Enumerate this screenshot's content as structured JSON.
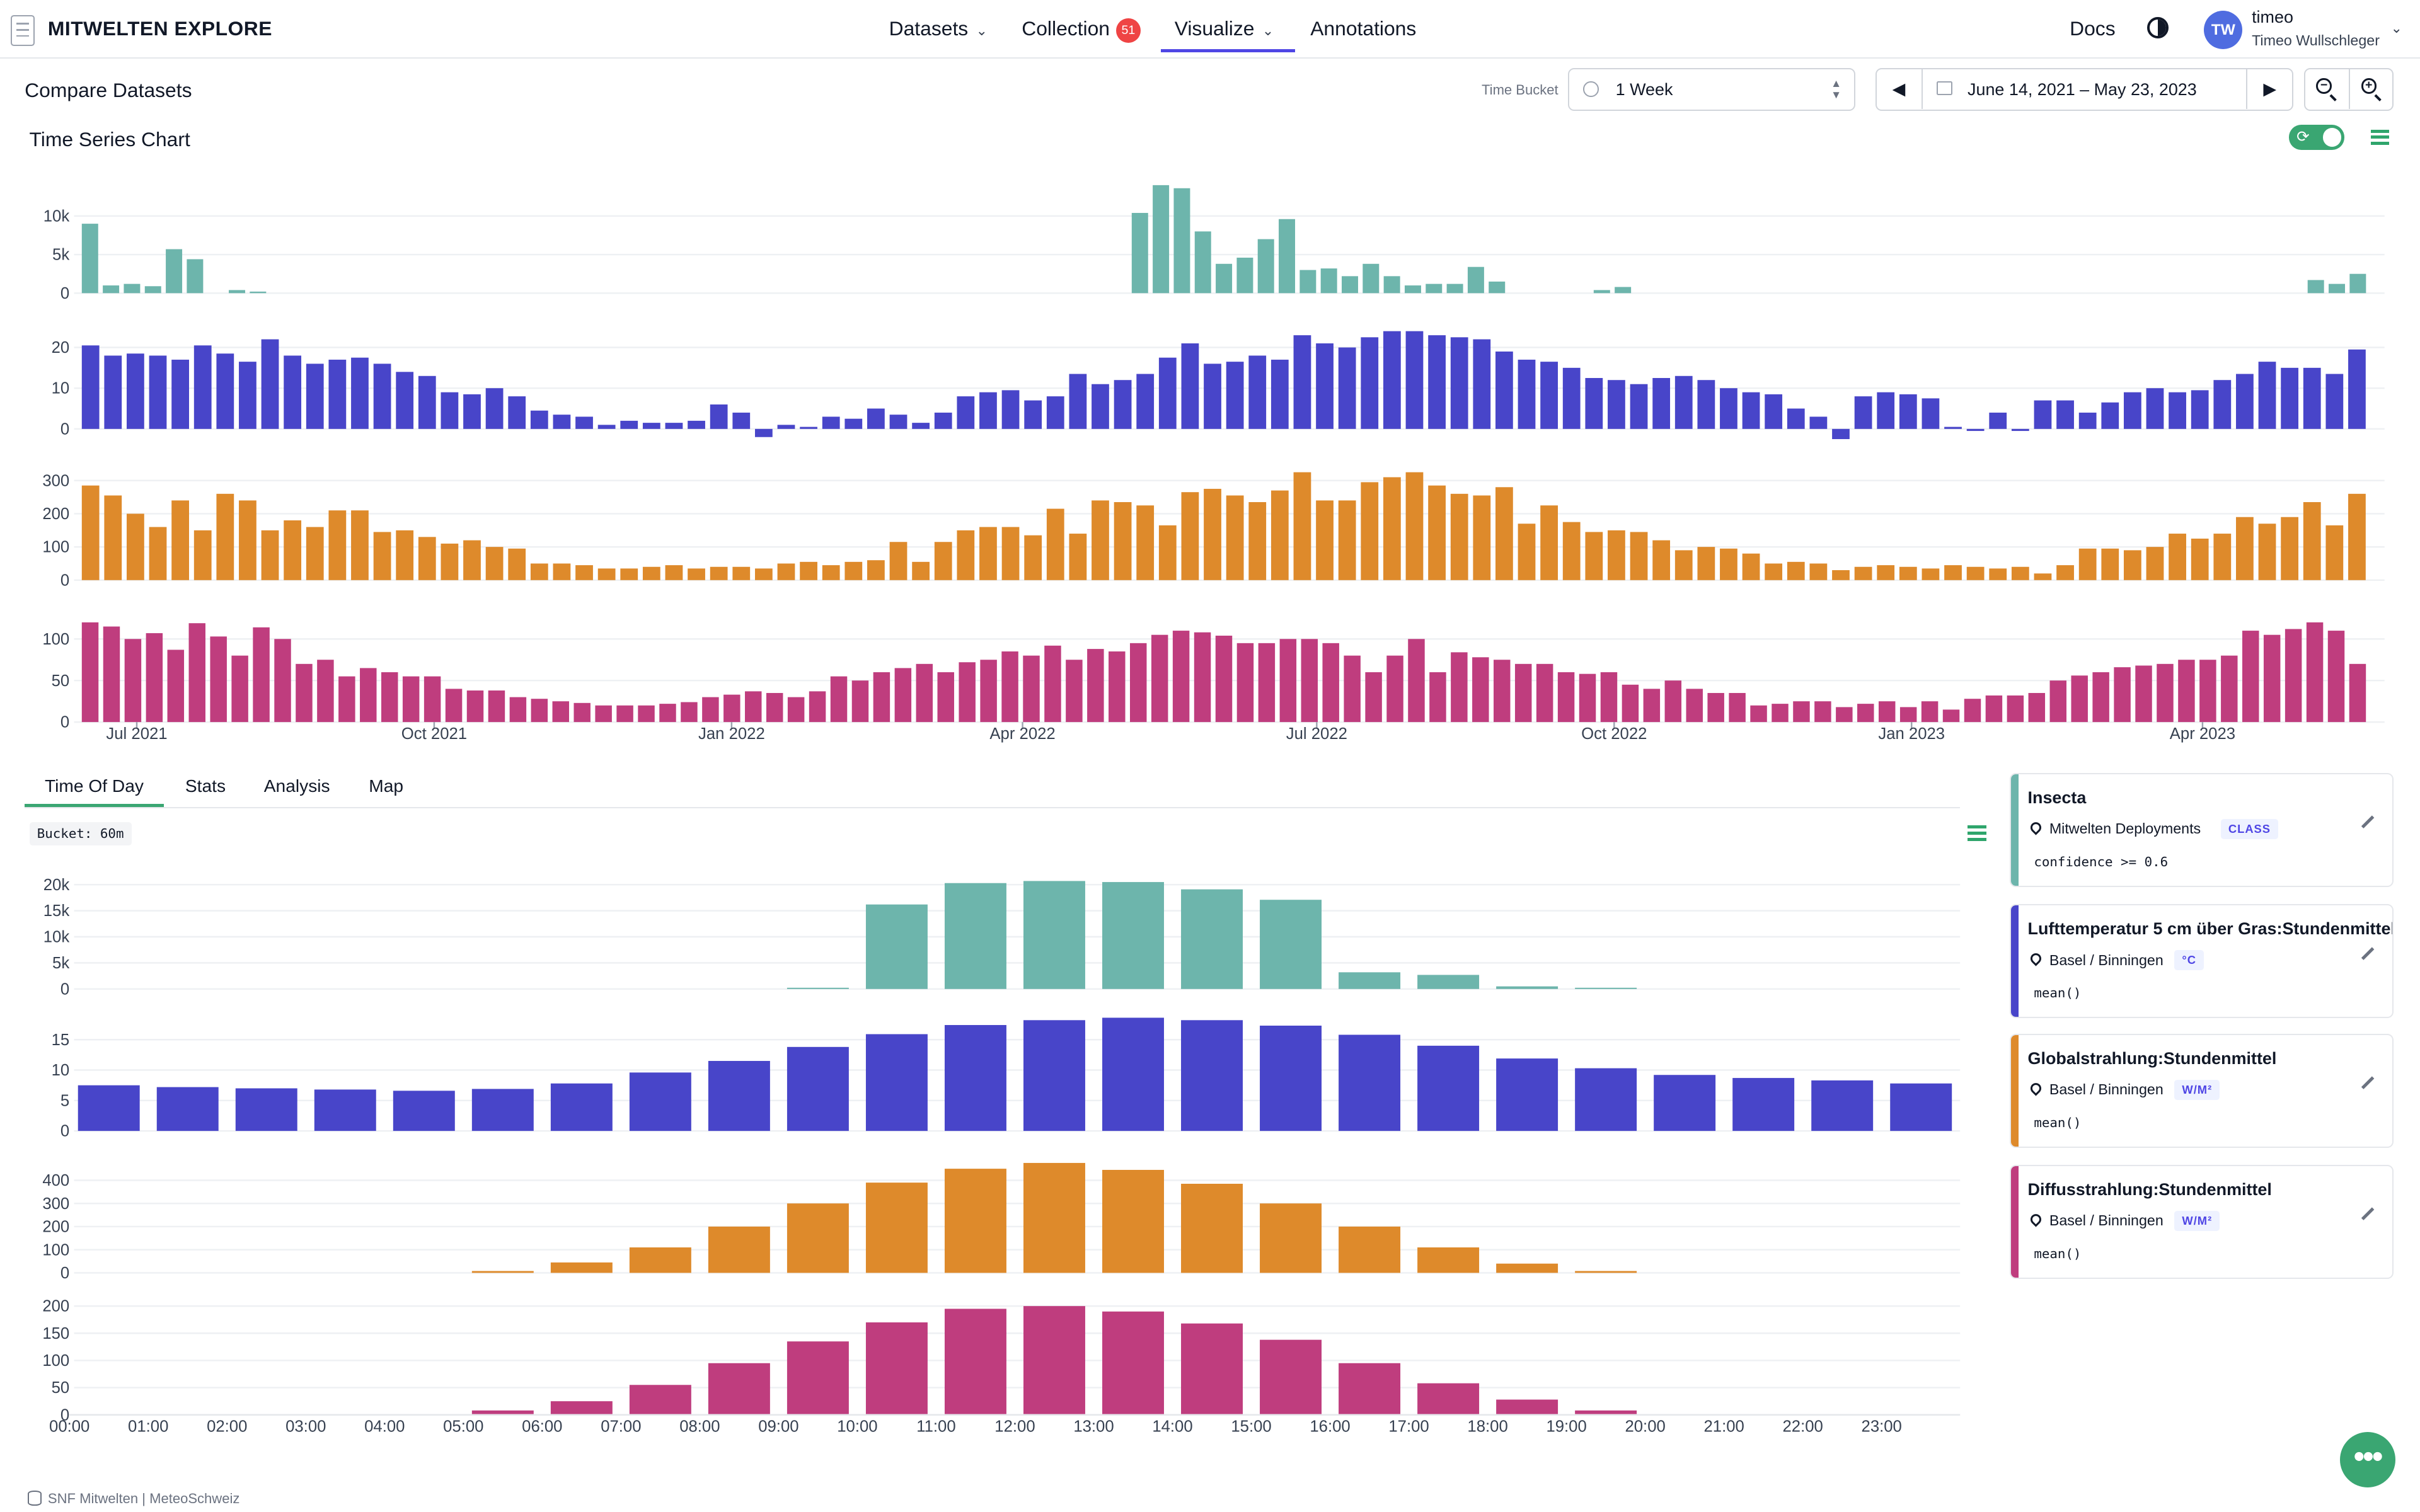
{
  "app": {
    "title": "MITWELTEN EXPLORE"
  },
  "nav": {
    "datasets": "Datasets",
    "collection": "Collection",
    "collection_count": "51",
    "visualize": "Visualize",
    "annotations": "Annotations",
    "docs": "Docs"
  },
  "user": {
    "initials": "TW",
    "handle": "timeo",
    "name": "Timeo Wullschleger"
  },
  "toolbar": {
    "page_title": "Compare Datasets",
    "time_bucket_label": "Time Bucket",
    "time_bucket_value": "1 Week",
    "date_range": "June 14, 2021 – May 23, 2023"
  },
  "timeseries": {
    "title": "Time Series Chart",
    "x_ticks": [
      "Jul 2021",
      "Oct 2021",
      "Jan 2022",
      "Apr 2022",
      "Jul 2022",
      "Oct 2022",
      "Jan 2023",
      "Apr 2023"
    ]
  },
  "tabs": [
    "Time Of Day",
    "Stats",
    "Analysis",
    "Map"
  ],
  "tod": {
    "bucket": "Bucket: 60m",
    "hours": [
      "00:00",
      "01:00",
      "02:00",
      "03:00",
      "04:00",
      "05:00",
      "06:00",
      "07:00",
      "08:00",
      "09:00",
      "10:00",
      "11:00",
      "12:00",
      "13:00",
      "14:00",
      "15:00",
      "16:00",
      "17:00",
      "18:00",
      "19:00",
      "20:00",
      "21:00",
      "22:00",
      "23:00"
    ]
  },
  "legend": [
    {
      "title": "Insecta",
      "source": "Mitwelten Deployments",
      "unit": "CLASS",
      "filter": "confidence >= 0.6",
      "color": "#6db5ac"
    },
    {
      "title": "Lufttemperatur 5 cm über Gras:Stundenmittel",
      "source": "Basel / Binningen",
      "unit": "°C",
      "filter": "mean()",
      "color": "#4845c9"
    },
    {
      "title": "Globalstrahlung:Stundenmittel",
      "source": "Basel / Binningen",
      "unit": "W/M²",
      "filter": "mean()",
      "color": "#de8a2b"
    },
    {
      "title": "Diffusstrahlung:Stundenmittel",
      "source": "Basel / Binningen",
      "unit": "W/M²",
      "filter": "mean()",
      "color": "#bf3d7e"
    }
  ],
  "footer": {
    "text": "SNF Mitwelten | MeteoSchweiz"
  },
  "chart_data": [
    {
      "type": "bar",
      "title": "Time Series Chart",
      "xlabel": "",
      "ylabel": "",
      "x_start": "2021-06-14",
      "x_end": "2023-05-23",
      "bucket": "1 Week",
      "series": [
        {
          "name": "Insecta",
          "color": "#6db5ac",
          "ylim": [
            0,
            14000
          ],
          "y_ticks": [
            0,
            5000,
            10000
          ],
          "y_tick_labels": [
            "0",
            "5k",
            "10k"
          ],
          "values": [
            9000,
            1000,
            1200,
            900,
            5700,
            4400,
            0,
            400,
            200,
            0,
            0,
            0,
            0,
            0,
            0,
            0,
            0,
            0,
            0,
            0,
            0,
            0,
            0,
            0,
            0,
            0,
            0,
            0,
            0,
            0,
            0,
            0,
            0,
            0,
            0,
            0,
            0,
            0,
            0,
            0,
            0,
            0,
            0,
            0,
            0,
            0,
            0,
            0,
            0,
            0,
            10400,
            14000,
            13600,
            8000,
            3800,
            4600,
            7000,
            9600,
            3000,
            3200,
            2200,
            3800,
            2200,
            1000,
            1200,
            1200,
            3400,
            1500,
            0,
            0,
            0,
            0,
            400,
            800,
            0,
            0,
            0,
            0,
            0,
            0,
            0,
            0,
            0,
            0,
            0,
            0,
            0,
            0,
            0,
            0,
            0,
            0,
            0,
            0,
            0,
            0,
            0,
            0,
            0,
            0,
            0,
            0,
            0,
            0,
            0,
            0,
            1700,
            1200,
            2500
          ]
        },
        {
          "name": "Lufttemperatur 5 cm über Gras:Stundenmittel",
          "color": "#4845c9",
          "ylim": [
            -3,
            25
          ],
          "y_ticks": [
            0,
            10,
            20
          ],
          "y_tick_labels": [
            "0",
            "10",
            "20"
          ],
          "values": [
            20.5,
            18,
            18.5,
            18,
            17,
            20.5,
            18.5,
            16.5,
            22,
            18,
            16,
            17,
            17.5,
            16,
            14,
            13,
            9,
            8.5,
            10,
            8,
            4.5,
            3.5,
            3,
            1,
            2,
            1.5,
            1.5,
            2,
            6,
            4,
            -2,
            1,
            0.5,
            3,
            2.5,
            5,
            3.5,
            1.5,
            4,
            8,
            9,
            9.5,
            7,
            8,
            13.5,
            11,
            12,
            13.5,
            17.5,
            21,
            16,
            16.5,
            18,
            17,
            23,
            21,
            20,
            22.5,
            24,
            24,
            23,
            22.5,
            22,
            19,
            17,
            16.5,
            15,
            12.5,
            12,
            11,
            12.5,
            13,
            12,
            10,
            9,
            8.5,
            5,
            3,
            -2.5,
            8,
            9,
            8.5,
            7.5,
            0.5,
            -0.5,
            4,
            -0.5,
            7,
            7,
            4,
            6.5,
            9,
            10,
            9,
            9.5,
            12,
            13.5,
            16.5,
            15,
            15,
            13.5,
            19.5
          ]
        },
        {
          "name": "Globalstrahlung:Stundenmittel",
          "color": "#de8a2b",
          "ylim": [
            0,
            330
          ],
          "y_ticks": [
            0,
            100,
            200,
            300
          ],
          "y_tick_labels": [
            "0",
            "100",
            "200",
            "300"
          ],
          "values": [
            285,
            255,
            200,
            160,
            240,
            150,
            260,
            240,
            150,
            180,
            160,
            210,
            210,
            145,
            150,
            130,
            110,
            120,
            100,
            95,
            50,
            50,
            45,
            35,
            35,
            40,
            45,
            35,
            40,
            40,
            35,
            50,
            55,
            45,
            55,
            60,
            115,
            55,
            115,
            150,
            160,
            160,
            135,
            215,
            140,
            240,
            235,
            225,
            165,
            265,
            275,
            255,
            235,
            270,
            325,
            240,
            240,
            295,
            310,
            325,
            285,
            260,
            255,
            280,
            170,
            225,
            175,
            145,
            150,
            145,
            120,
            90,
            100,
            95,
            80,
            50,
            55,
            50,
            30,
            40,
            45,
            40,
            35,
            45,
            40,
            35,
            40,
            20,
            45,
            95,
            95,
            90,
            100,
            140,
            125,
            140,
            190,
            170,
            190,
            235,
            165,
            260
          ]
        },
        {
          "name": "Diffusstrahlung:Stundenmittel",
          "color": "#bf3d7e",
          "ylim": [
            0,
            130
          ],
          "y_ticks": [
            0,
            50,
            100
          ],
          "y_tick_labels": [
            "0",
            "50",
            "100"
          ],
          "values": [
            120,
            115,
            100,
            107,
            87,
            119,
            103,
            80,
            114,
            100,
            70,
            75,
            55,
            65,
            60,
            55,
            55,
            40,
            38,
            38,
            30,
            28,
            25,
            23,
            20,
            20,
            20,
            22,
            24,
            30,
            33,
            37,
            35,
            30,
            37,
            55,
            50,
            60,
            65,
            70,
            60,
            72,
            75,
            85,
            80,
            92,
            75,
            88,
            85,
            95,
            105,
            110,
            108,
            104,
            95,
            95,
            100,
            100,
            95,
            80,
            60,
            80,
            100,
            60,
            84,
            78,
            75,
            70,
            70,
            60,
            58,
            60,
            45,
            40,
            50,
            40,
            35,
            35,
            20,
            22,
            25,
            25,
            18,
            22,
            25,
            18,
            25,
            15,
            28,
            32,
            32,
            35,
            50,
            56,
            60,
            66,
            68,
            70,
            75,
            75,
            80,
            110,
            105,
            112,
            120,
            110,
            70
          ]
        }
      ]
    },
    {
      "type": "bar",
      "title": "Time Of Day",
      "xlabel": "",
      "ylabel": "",
      "categories": [
        "00:00",
        "01:00",
        "02:00",
        "03:00",
        "04:00",
        "05:00",
        "06:00",
        "07:00",
        "08:00",
        "09:00",
        "10:00",
        "11:00",
        "12:00",
        "13:00",
        "14:00",
        "15:00",
        "16:00",
        "17:00",
        "18:00",
        "19:00",
        "20:00",
        "21:00",
        "22:00",
        "23:00"
      ],
      "series": [
        {
          "name": "Insecta",
          "color": "#6db5ac",
          "ylim": [
            0,
            21000
          ],
          "y_ticks": [
            0,
            5000,
            10000,
            15000,
            20000
          ],
          "y_tick_labels": [
            "0",
            "5k",
            "10k",
            "15k",
            "20k"
          ],
          "values": [
            0,
            0,
            0,
            0,
            0,
            0,
            0,
            0,
            0,
            200,
            16200,
            20300,
            20700,
            20500,
            19100,
            17100,
            3200,
            2700,
            500,
            200,
            0,
            0,
            0,
            0
          ]
        },
        {
          "name": "Lufttemperatur 5 cm über Gras:Stundenmittel",
          "color": "#4845c9",
          "ylim": [
            0,
            18
          ],
          "y_ticks": [
            0,
            5,
            10,
            15
          ],
          "y_tick_labels": [
            "0",
            "5",
            "10",
            "15"
          ],
          "values": [
            7.5,
            7.2,
            7.0,
            6.8,
            6.6,
            6.9,
            7.8,
            9.6,
            11.5,
            13.8,
            15.9,
            17.4,
            18.2,
            18.6,
            18.2,
            17.3,
            15.8,
            14.0,
            11.9,
            10.3,
            9.2,
            8.7,
            8.3,
            7.8
          ]
        },
        {
          "name": "Globalstrahlung:Stundenmittel",
          "color": "#de8a2b",
          "ylim": [
            0,
            480
          ],
          "y_ticks": [
            0,
            100,
            200,
            300,
            400
          ],
          "y_tick_labels": [
            "0",
            "100",
            "200",
            "300",
            "400"
          ],
          "values": [
            0,
            0,
            0,
            0,
            0,
            8,
            45,
            110,
            200,
            300,
            390,
            450,
            475,
            445,
            385,
            300,
            200,
            110,
            40,
            8,
            0,
            0,
            0,
            0
          ]
        },
        {
          "name": "Diffusstrahlung:Stundenmittel",
          "color": "#bf3d7e",
          "ylim": [
            0,
            210
          ],
          "y_ticks": [
            0,
            50,
            100,
            150,
            200
          ],
          "y_tick_labels": [
            "0",
            "50",
            "100",
            "150",
            "200"
          ],
          "values": [
            0,
            0,
            0,
            0,
            0,
            8,
            25,
            55,
            95,
            135,
            170,
            195,
            200,
            190,
            168,
            138,
            95,
            58,
            28,
            8,
            0,
            0,
            0,
            0
          ]
        }
      ]
    }
  ]
}
